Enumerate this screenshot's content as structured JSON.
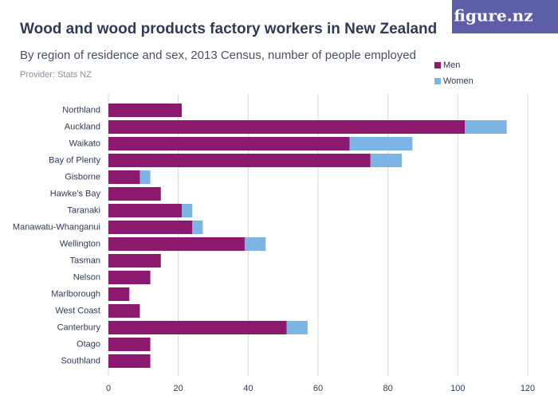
{
  "logo": "figure.nz",
  "chart_data": {
    "type": "bar",
    "orientation": "horizontal",
    "stacked": true,
    "title": "Wood and wood products factory workers in New Zealand",
    "subtitle": "By region of residence and sex, 2013 Census, number of people employed",
    "provider": "Provider: Stats NZ",
    "categories": [
      "Northland",
      "Auckland",
      "Waikato",
      "Bay of Plenty",
      "Gisborne",
      "Hawke's Bay",
      "Taranaki",
      "Manawatu-Whanganui",
      "Wellington",
      "Tasman",
      "Nelson",
      "Marlborough",
      "West Coast",
      "Canterbury",
      "Otago",
      "Southland"
    ],
    "series": [
      {
        "name": "Men",
        "color": "#8b1a6f",
        "values": [
          21,
          102,
          69,
          75,
          9,
          15,
          21,
          24,
          39,
          15,
          12,
          6,
          9,
          51,
          12,
          12
        ]
      },
      {
        "name": "Women",
        "color": "#7cb4e3",
        "values": [
          0,
          12,
          18,
          9,
          3,
          0,
          3,
          3,
          6,
          0,
          0,
          0,
          0,
          6,
          0,
          0
        ]
      }
    ],
    "xlim": [
      0,
      120
    ],
    "xticks": [
      0,
      20,
      40,
      60,
      80,
      100,
      120
    ],
    "grid": true
  }
}
